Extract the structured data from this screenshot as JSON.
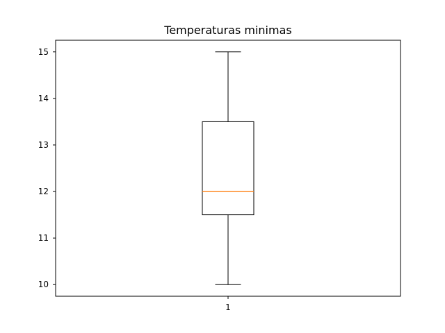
{
  "chart_data": {
    "type": "box",
    "title": "Temperaturas minimas",
    "xlabel": "",
    "ylabel": "",
    "categories": [
      "1"
    ],
    "boxes": [
      {
        "label": "1",
        "whisker_low": 10,
        "q1": 11.5,
        "median": 12,
        "q3": 13.5,
        "whisker_high": 15
      }
    ],
    "ylim": [
      9.75,
      15.25
    ],
    "yticks": [
      10,
      11,
      12,
      13,
      14,
      15
    ],
    "grid": false,
    "colors": {
      "box": "#000000",
      "median": "#ff7f0e",
      "axes": "#000000"
    }
  }
}
